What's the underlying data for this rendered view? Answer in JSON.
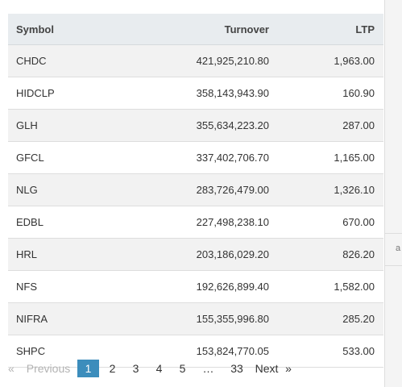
{
  "table": {
    "columns": [
      "Symbol",
      "Turnover",
      "LTP"
    ],
    "rows": [
      {
        "symbol": "CHDC",
        "turnover": "421,925,210.80",
        "ltp": "1,963.00"
      },
      {
        "symbol": "HIDCLP",
        "turnover": "358,143,943.90",
        "ltp": "160.90"
      },
      {
        "symbol": "GLH",
        "turnover": "355,634,223.20",
        "ltp": "287.00"
      },
      {
        "symbol": "GFCL",
        "turnover": "337,402,706.70",
        "ltp": "1,165.00"
      },
      {
        "symbol": "NLG",
        "turnover": "283,726,479.00",
        "ltp": "1,326.10"
      },
      {
        "symbol": "EDBL",
        "turnover": "227,498,238.10",
        "ltp": "670.00"
      },
      {
        "symbol": "HRL",
        "turnover": "203,186,029.20",
        "ltp": "826.20"
      },
      {
        "symbol": "NFS",
        "turnover": "192,626,899.40",
        "ltp": "1,582.00"
      },
      {
        "symbol": "NIFRA",
        "turnover": "155,355,996.80",
        "ltp": "285.20"
      },
      {
        "symbol": "SHPC",
        "turnover": "153,824,770.05",
        "ltp": "533.00"
      }
    ]
  },
  "pagination": {
    "prev_arrow": "«",
    "prev_label": "Previous",
    "pages": [
      "1",
      "2",
      "3",
      "4",
      "5",
      "…",
      "33"
    ],
    "active_page": "1",
    "next_label": "Next",
    "next_arrow": "»"
  },
  "background": {
    "edge_text": "a"
  }
}
